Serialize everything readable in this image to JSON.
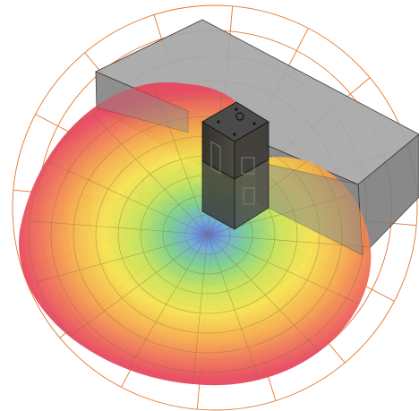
{
  "image": {
    "subject": "sensor-coverage-visualization",
    "elements": [
      "polar-grid",
      "coverage-heatmap",
      "wall-block",
      "sensor-device"
    ]
  },
  "colors": {
    "background": "#ffffff",
    "polar_grid": "#e0782e",
    "heat_far": "#e84a5f",
    "heat_mid_far": "#f07d4a",
    "heat_mid": "#f7d84a",
    "heat_mid_near": "#cde24f",
    "heat_near": "#68c98a",
    "heat_center": "#6a6fd8",
    "wall_fill": "#9a9a9a",
    "device_top": "#3a3a3a",
    "device_body": "#2e2e2e"
  },
  "polar_grid": {
    "rings": 8,
    "spokes": 16
  }
}
